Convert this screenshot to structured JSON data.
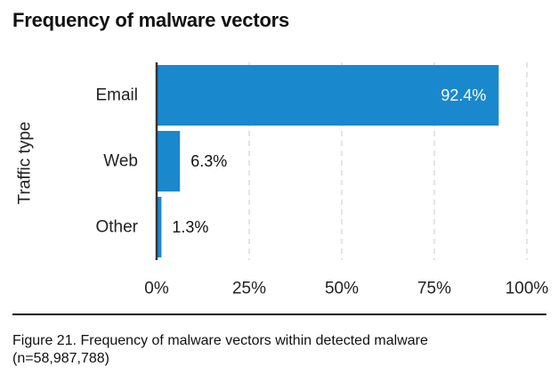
{
  "chart_data": {
    "type": "bar",
    "orientation": "horizontal",
    "title": "Frequency of malware vectors",
    "categories": [
      "Email",
      "Web",
      "Other"
    ],
    "values": [
      92.4,
      6.3,
      1.3
    ],
    "value_labels": [
      "92.4%",
      "6.3%",
      "1.3%"
    ],
    "xlabel": "",
    "ylabel": "Traffic type",
    "xlim": [
      0,
      100
    ],
    "xticks": [
      0,
      25,
      50,
      75,
      100
    ],
    "xtick_labels": [
      "0%",
      "25%",
      "50%",
      "75%",
      "100%"
    ],
    "grid": "vertical dashed",
    "legend": "none",
    "bar_color": "#1A88CC"
  },
  "caption": {
    "line1": "Figure 21.  Frequency of malware vectors within detected malware",
    "line2": "(n=58,987,788)"
  }
}
